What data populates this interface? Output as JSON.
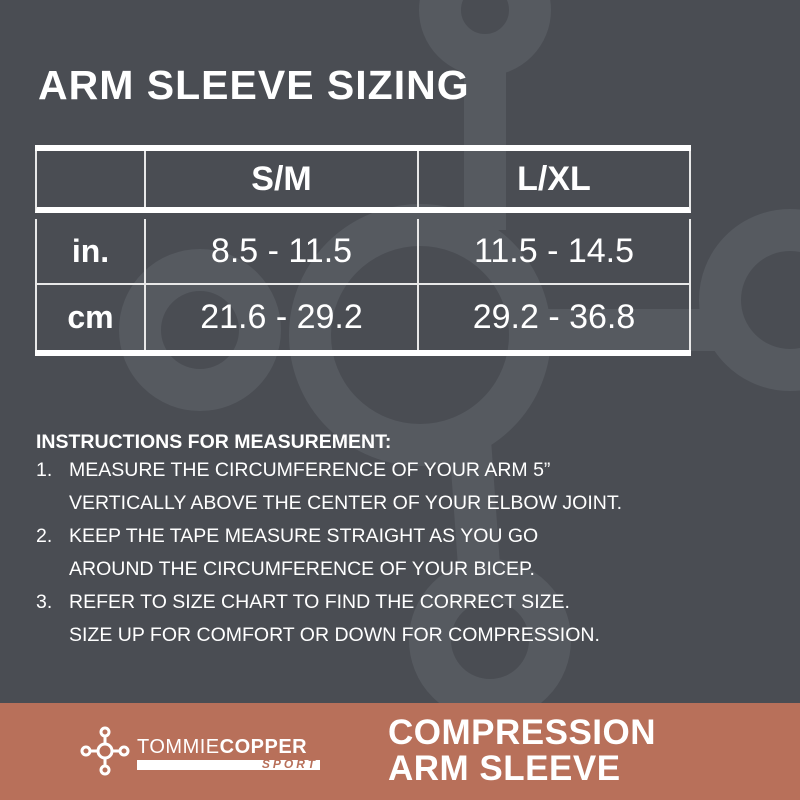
{
  "title": "ARM SLEEVE SIZING",
  "table": {
    "headers": [
      "",
      "S/M",
      "L/XL"
    ],
    "rows": [
      {
        "unit": "in.",
        "values": [
          "8.5 - 11.5",
          "11.5 - 14.5"
        ]
      },
      {
        "unit": "cm",
        "values": [
          "21.6 - 29.2",
          "29.2 - 36.8"
        ]
      }
    ]
  },
  "instructions": {
    "heading": "INSTRUCTIONS FOR MEASUREMENT:",
    "items": [
      {
        "num": "1.",
        "lines": [
          "MEASURE THE CIRCUMFERENCE OF YOUR ARM 5”",
          "VERTICALLY ABOVE THE CENTER OF YOUR ELBOW JOINT."
        ]
      },
      {
        "num": "2.",
        "lines": [
          "KEEP THE TAPE MEASURE STRAIGHT AS YOU GO",
          "AROUND THE CIRCUMFERENCE OF YOUR BICEP."
        ]
      },
      {
        "num": "3.",
        "lines": [
          "REFER TO SIZE CHART TO FIND THE CORRECT SIZE.",
          "SIZE UP FOR COMFORT OR DOWN FOR COMPRESSION."
        ]
      }
    ]
  },
  "footer": {
    "brand_light": "TOMMIE",
    "brand_bold": "COPPER",
    "brand_sub": "SPORT",
    "product_line1": "COMPRESSION",
    "product_line2": "ARM SLEEVE",
    "colors": {
      "background": "#4a4d53",
      "copper": "#b8705a",
      "watermark": "#575a60"
    }
  }
}
